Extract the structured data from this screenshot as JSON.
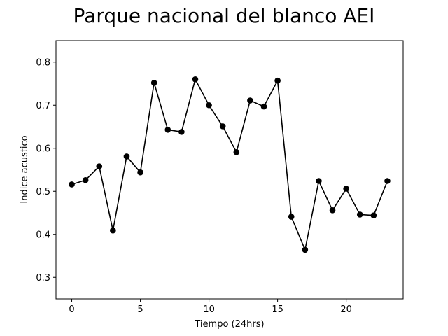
{
  "chart_data": {
    "type": "line",
    "title": "Parque nacional del blanco AEI",
    "xlabel": "Tiempo (24hrs)",
    "ylabel": "Indice acustico",
    "xlim": [
      -1.15,
      24.15
    ],
    "ylim": [
      0.25,
      0.85
    ],
    "x_ticks": [
      0,
      5,
      10,
      15,
      20
    ],
    "y_ticks": [
      0.3,
      0.4,
      0.5,
      0.6,
      0.7,
      0.8
    ],
    "x_tick_labels": [
      "0",
      "5",
      "10",
      "15",
      "20"
    ],
    "y_tick_labels": [
      "0.3",
      "0.4",
      "0.5",
      "0.6",
      "0.7",
      "0.8"
    ],
    "grid": false,
    "series": [
      {
        "color": "#000000",
        "marker": "circle",
        "x": [
          0,
          1,
          2,
          3,
          4,
          5,
          6,
          7,
          8,
          9,
          10,
          11,
          12,
          13,
          14,
          15,
          16,
          17,
          18,
          19,
          20,
          21,
          22,
          23
        ],
        "y": [
          0.516,
          0.526,
          0.558,
          0.409,
          0.581,
          0.544,
          0.752,
          0.643,
          0.638,
          0.76,
          0.7,
          0.651,
          0.591,
          0.711,
          0.697,
          0.757,
          0.441,
          0.364,
          0.524,
          0.456,
          0.506,
          0.446,
          0.444,
          0.524
        ]
      }
    ]
  }
}
